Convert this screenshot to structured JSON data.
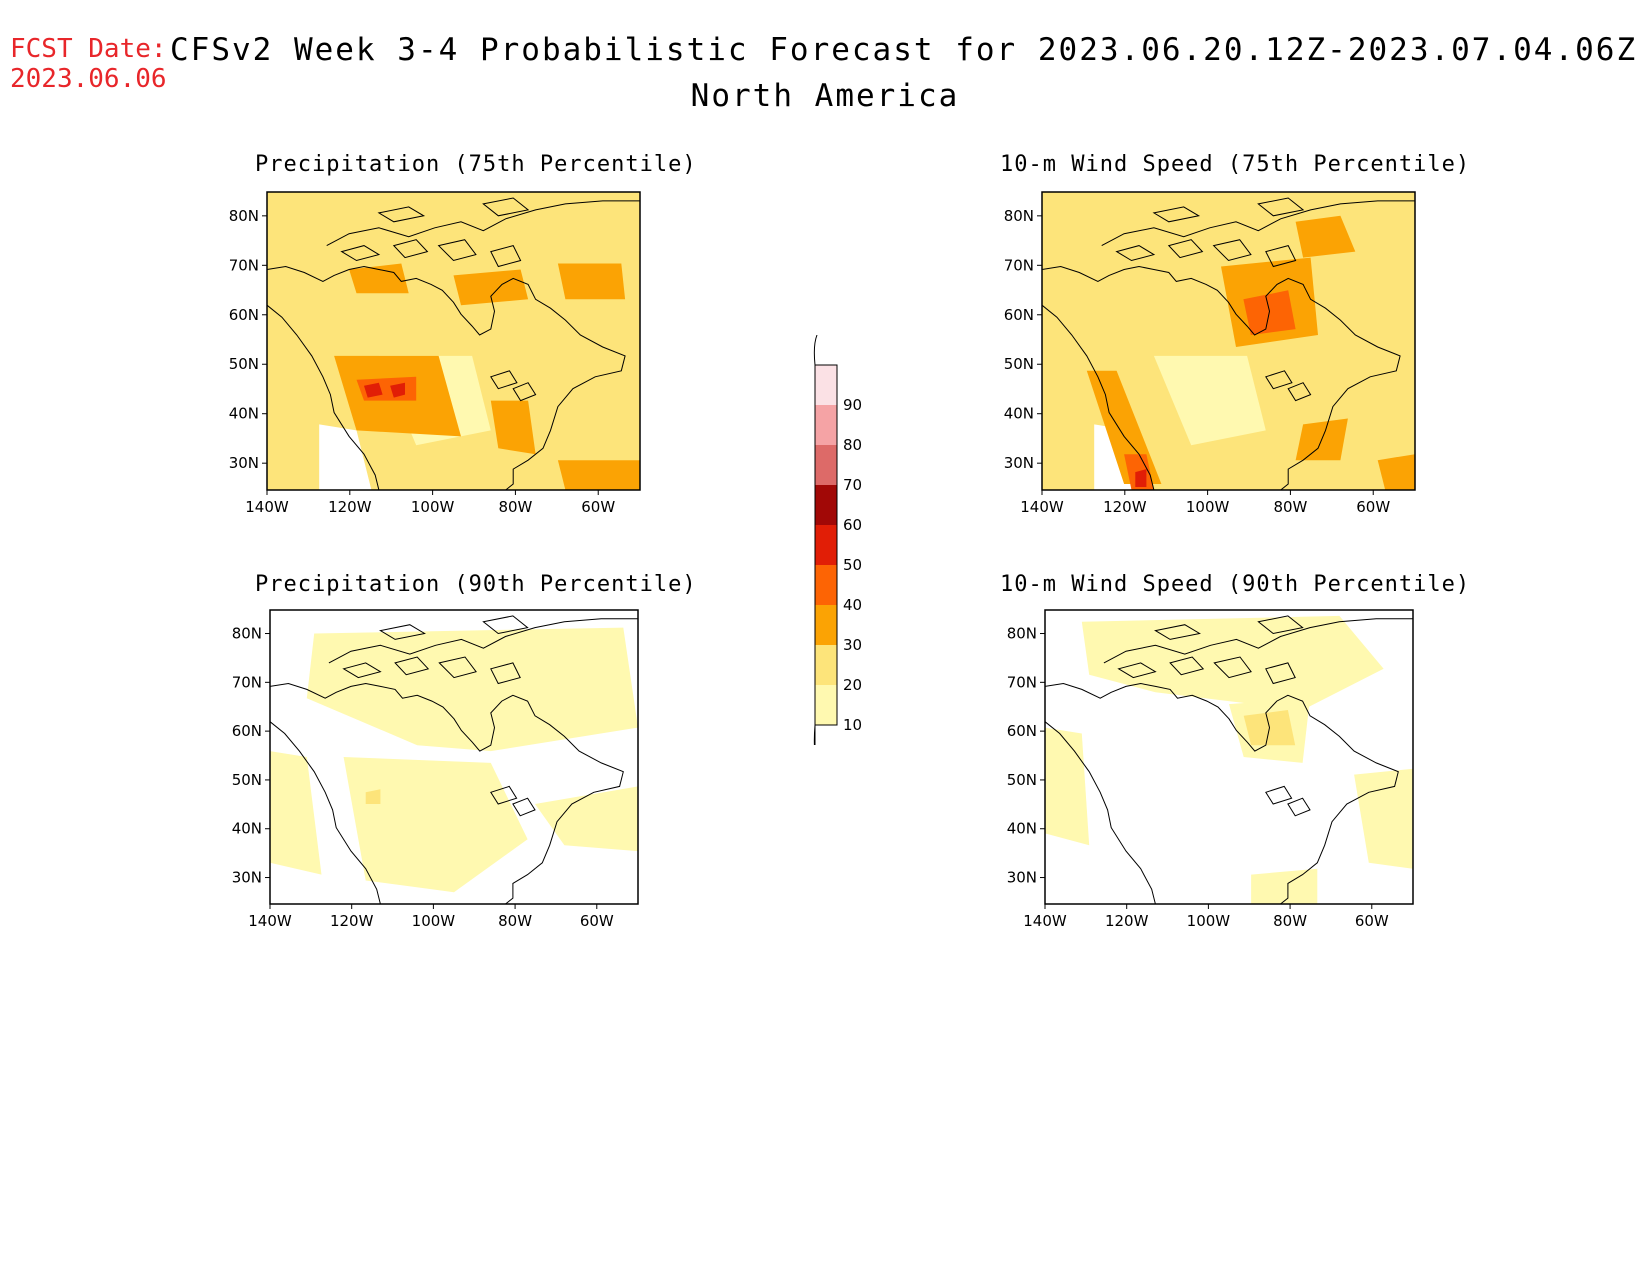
{
  "header": {
    "fcst_label": "FCST Date:",
    "fcst_date": "2023.06.06",
    "title": "CFSv2 Week 3-4 Probabilistic Forecast for 2023.06.20.12Z-2023.07.04.06Z",
    "subtitle": "North America"
  },
  "panels": [
    {
      "title": "Precipitation (75th Percentile)",
      "intensity": "high",
      "hotspots": "west"
    },
    {
      "title": "10-m Wind Speed (75th Percentile)",
      "intensity": "high",
      "hotspots": "hudson"
    },
    {
      "title": "Precipitation (90th Percentile)",
      "intensity": "low",
      "hotspots": "west"
    },
    {
      "title": "10-m Wind Speed (90th Percentile)",
      "intensity": "low",
      "hotspots": "hudson"
    }
  ],
  "axes": {
    "lat_ticks": [
      "80N",
      "70N",
      "60N",
      "50N",
      "40N",
      "30N"
    ],
    "lon_ticks": [
      "140W",
      "120W",
      "100W",
      "80W",
      "60W"
    ]
  },
  "colorbar": {
    "levels": [
      "10",
      "20",
      "30",
      "40",
      "50",
      "60",
      "70",
      "80",
      "90"
    ],
    "colors": [
      "#fff9b0",
      "#fde47a",
      "#fba304",
      "#fd6404",
      "#e11e06",
      "#a10806",
      "#dd6a68",
      "#f5a3a5",
      "#fbe1e5"
    ]
  },
  "palette": {
    "c10": "#fff9b0",
    "c20": "#fde47a",
    "c30": "#fba304",
    "c40": "#fd6404",
    "c50": "#e11e06",
    "fcst_color": "#e8262a"
  }
}
